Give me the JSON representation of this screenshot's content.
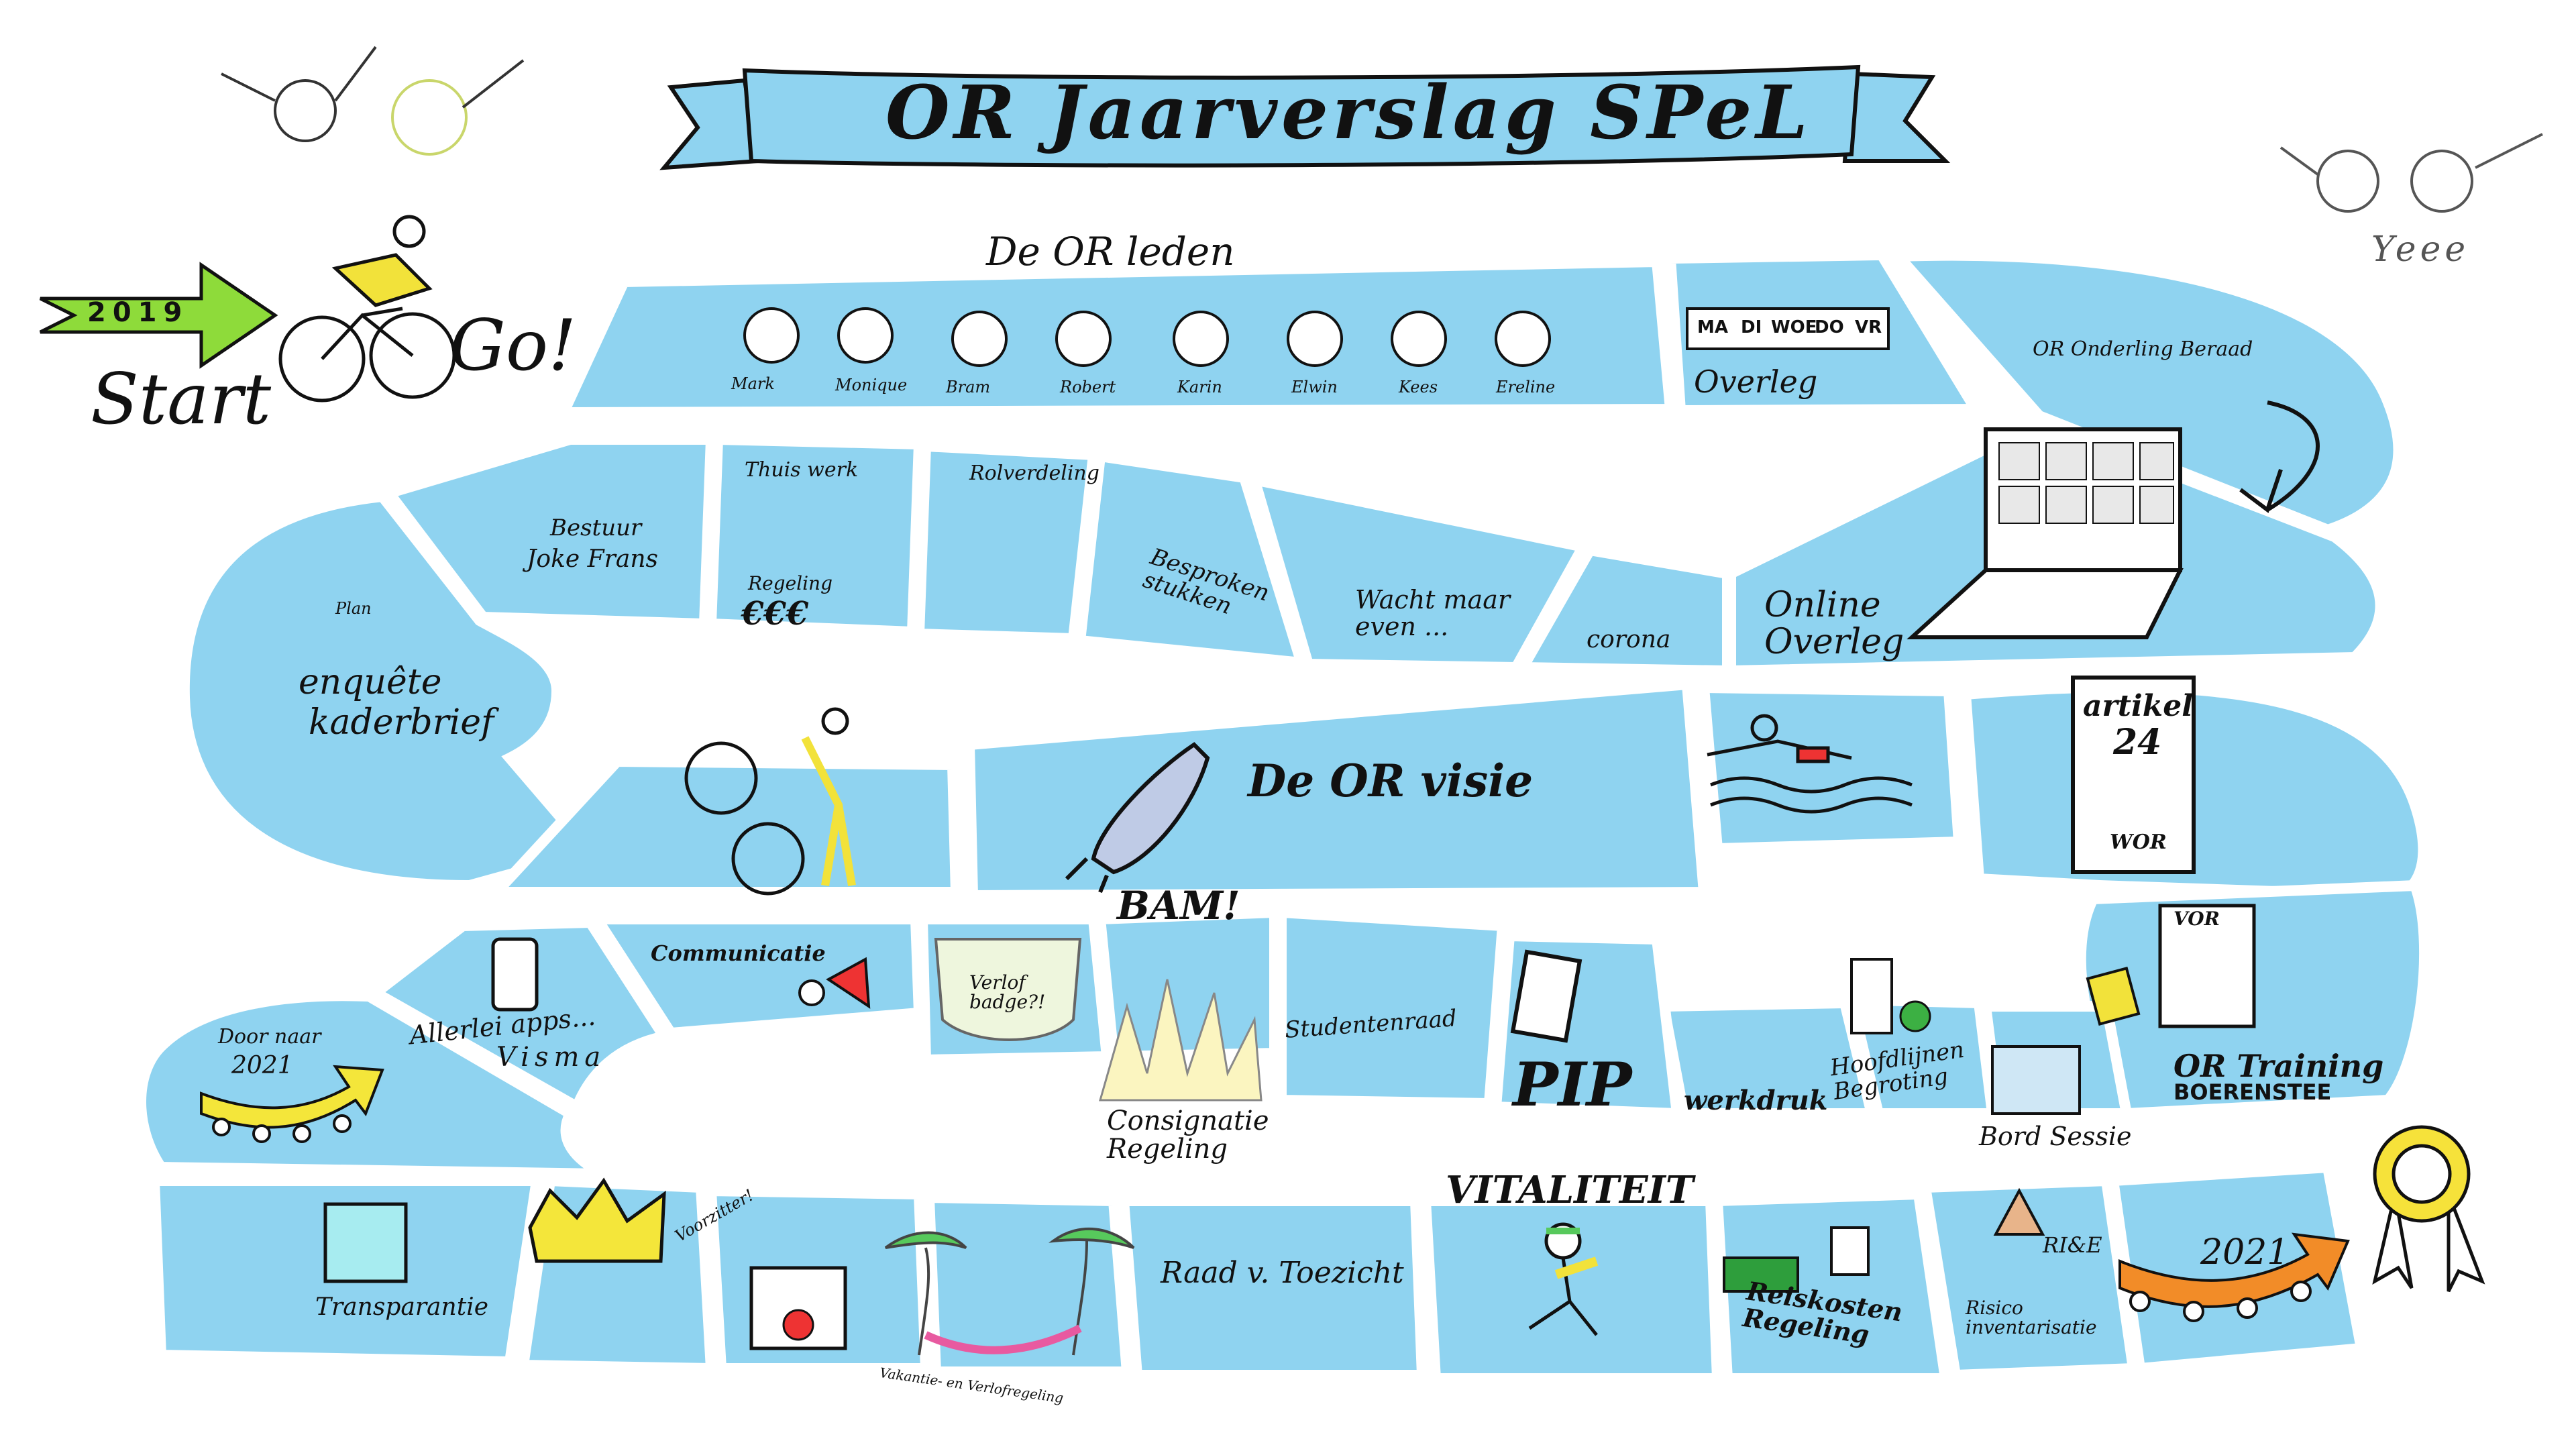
{
  "title": "OR Jaarverslag SPeL",
  "start": {
    "year": "2019",
    "start_label": "Start",
    "go_label": "Go!"
  },
  "sections": {
    "or_leden": "De OR leden",
    "members": [
      "Mark",
      "Monique",
      "Bram",
      "Robert",
      "Karin",
      "Elwin",
      "Kees",
      "Ereline"
    ],
    "overleg_days": [
      "MA",
      "DI",
      "WOE",
      "DO",
      "VR"
    ],
    "overleg": "Overleg",
    "onderling_beraad": "OR Onderling Beraad",
    "online_overleg": "Online Overleg",
    "corona": "corona",
    "wacht_maar": "Wacht maar even ...",
    "besproken_stukken": "Besproken stukken",
    "rolverdeling": "Rolverdeling",
    "thuiswerk": "Thuis werk",
    "regeling": "Regeling",
    "euros": "€€€",
    "bestuur": "Bestuur",
    "bestuur_names": "Joke Frans",
    "plan": "Plan",
    "enquete": "enquête",
    "kaderbrief": "kaderbrief",
    "or_visie": "De OR visie",
    "artikel": "artikel",
    "artikel_nr": "24",
    "wor": "WOR",
    "vor": "VOR",
    "or_training": "OR Training",
    "boerensteе": "BOERENSTEE",
    "bordsessie": "Bord Sessie",
    "hoofdlijnen": "Hoofdlijnen Begroting",
    "werkdruk": "werkdruk",
    "pip": "PIP",
    "studentenraad": "Studentenraad",
    "bam": "BAM!",
    "consignatie": "Consignatie Regeling",
    "verlof_badge": "Verlof badge?!",
    "communicatie": "Communicatie",
    "allerlei_apps": "Allerlei apps...",
    "visma": "Visma",
    "door_naar": "Door naar",
    "door_naar_year": "2021",
    "transparantie": "Transparantie",
    "voorzitter": "Voorzitter!",
    "vakantie": "Vakantie- en Verlofregeling",
    "raad_toezicht": "Raad v. Toezicht",
    "vitaliteit": "VITALITEIT",
    "reiskosten": "Reiskosten Regeling",
    "rie": "RI&E",
    "risico": "Risico inventarisatie",
    "end_year": "2021",
    "yeee": "Yeee"
  },
  "colors": {
    "tile": "#8fd3f0",
    "tile_stroke": "#ffffff",
    "ink": "#111111",
    "arrow_green": "#8edb3a",
    "arrow_yellow": "#f4e63a",
    "arrow_orange": "#f28c28",
    "cyclist_yellow": "#f2e23a",
    "rosette": "#f6e23a"
  },
  "icons": [
    "cyclist-icon",
    "rocket-icon",
    "swimmer-icon",
    "laptop-icon",
    "megaphone-icon",
    "crown-icon",
    "palm-icon",
    "bus-icon",
    "warning-icon",
    "rosette-icon"
  ]
}
